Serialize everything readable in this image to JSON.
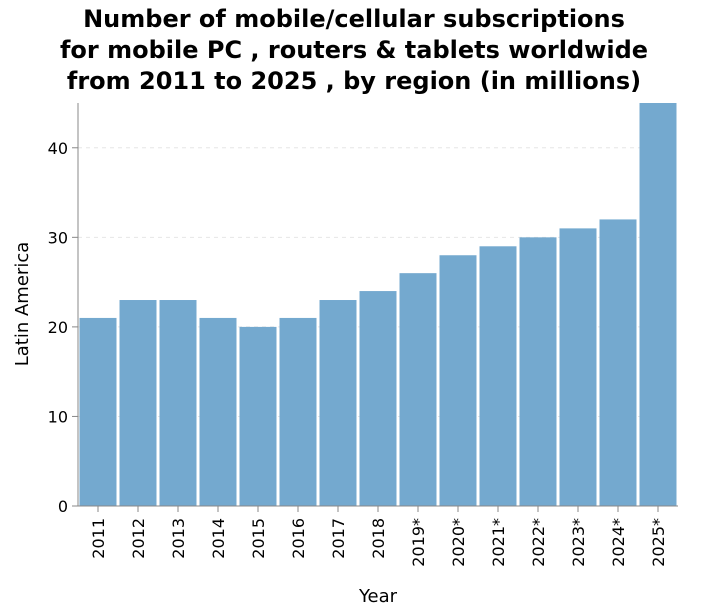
{
  "chart_data": {
    "type": "bar",
    "title_lines": [
      "Number of mobile/cellular subscriptions",
      "for mobile PC , routers & tablets worldwide",
      "from 2011 to 2025 , by region (in millions)"
    ],
    "xlabel": "Year",
    "ylabel": "Latin America",
    "categories": [
      "2011",
      "2012",
      "2013",
      "2014",
      "2015",
      "2016",
      "2017",
      "2018",
      "2019*",
      "2020*",
      "2021*",
      "2022*",
      "2023*",
      "2024*",
      "2025*"
    ],
    "values": [
      21,
      23,
      23,
      21,
      20,
      21,
      23,
      24,
      26,
      28,
      29,
      30,
      31,
      32,
      45
    ],
    "ylim": [
      0,
      45
    ],
    "yticks": [
      0,
      10,
      20,
      30,
      40
    ],
    "grid": true,
    "bar_color": "#74a9cf"
  }
}
